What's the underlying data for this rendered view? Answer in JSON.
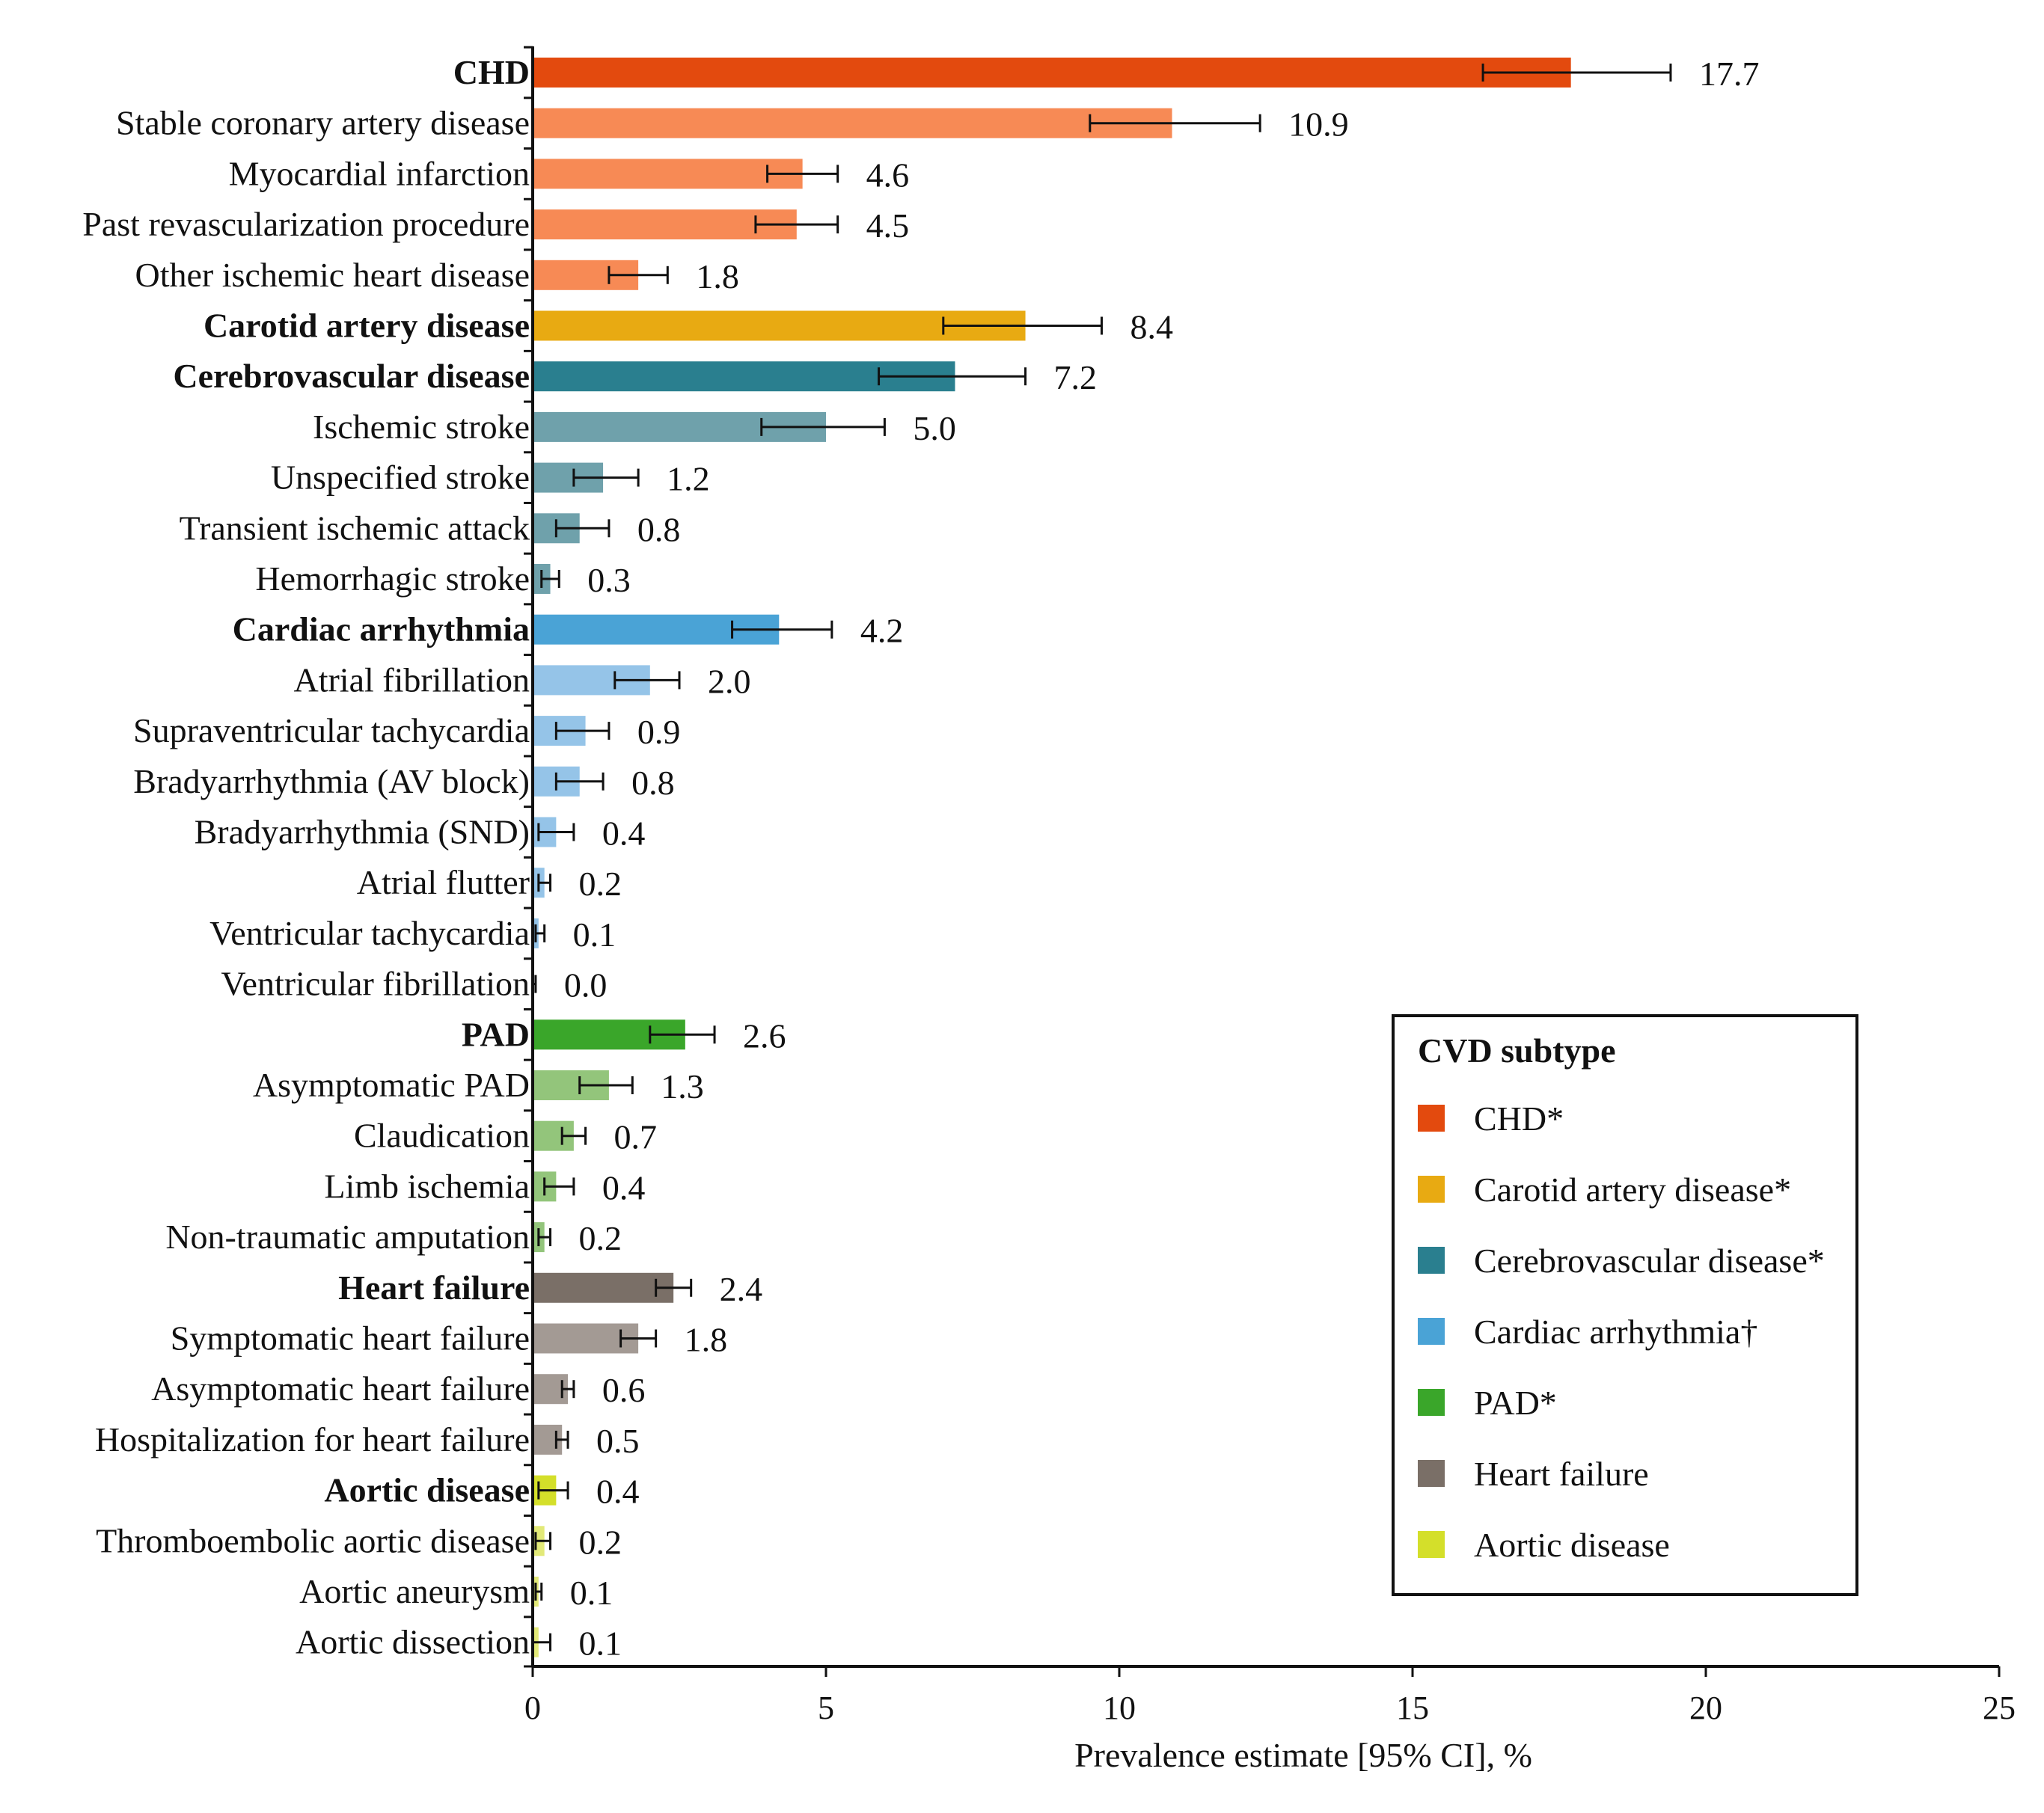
{
  "chart_data": {
    "type": "bar",
    "orientation": "horizontal",
    "xlabel": "Prevalence estimate [95% CI], %",
    "xlim": [
      0,
      25
    ],
    "xticks": [
      "0",
      "5",
      "10",
      "15",
      "20",
      "25"
    ],
    "grid": false,
    "legend_position": "bottom-right",
    "legend": {
      "title": "CVD subtype",
      "entries": [
        {
          "label": "CHD*",
          "color": "#e34a0e"
        },
        {
          "label": "Carotid artery disease*",
          "color": "#e8aa12"
        },
        {
          "label": "Cerebrovascular disease*",
          "color": "#2a7f8f"
        },
        {
          "label": "Cardiac arrhythmia†",
          "color": "#4aa3d6"
        },
        {
          "label": "PAD*",
          "color": "#3aa62a"
        },
        {
          "label": "Heart failure",
          "color": "#7a6f67"
        },
        {
          "label": "Aortic disease",
          "color": "#d4df2a"
        }
      ]
    },
    "categories": [
      {
        "label": "CHD",
        "value": 17.7,
        "display": "17.7",
        "ci": [
          16.2,
          19.4
        ],
        "bold": true,
        "color": "#e34a0e"
      },
      {
        "label": "Stable coronary artery disease",
        "value": 10.9,
        "display": "10.9",
        "ci": [
          9.5,
          12.4
        ],
        "bold": false,
        "color": "#f78a55"
      },
      {
        "label": "Myocardial infarction",
        "value": 4.6,
        "display": "4.6",
        "ci": [
          4.0,
          5.2
        ],
        "bold": false,
        "color": "#f78a55"
      },
      {
        "label": "Past revascularization procedure",
        "value": 4.5,
        "display": "4.5",
        "ci": [
          3.8,
          5.2
        ],
        "bold": false,
        "color": "#f78a55"
      },
      {
        "label": "Other ischemic heart disease",
        "value": 1.8,
        "display": "1.8",
        "ci": [
          1.3,
          2.3
        ],
        "bold": false,
        "color": "#f78a55"
      },
      {
        "label": "Carotid artery disease",
        "value": 8.4,
        "display": "8.4",
        "ci": [
          7.0,
          9.7
        ],
        "bold": true,
        "color": "#e8aa12"
      },
      {
        "label": "Cerebrovascular disease",
        "value": 7.2,
        "display": "7.2",
        "ci": [
          5.9,
          8.4
        ],
        "bold": true,
        "color": "#2a7f8f"
      },
      {
        "label": "Ischemic stroke",
        "value": 5.0,
        "display": "5.0",
        "ci": [
          3.9,
          6.0
        ],
        "bold": false,
        "color": "#6fa1ab"
      },
      {
        "label": "Unspecified stroke",
        "value": 1.2,
        "display": "1.2",
        "ci": [
          0.7,
          1.8
        ],
        "bold": false,
        "color": "#6fa1ab"
      },
      {
        "label": "Transient ischemic attack",
        "value": 0.8,
        "display": "0.8",
        "ci": [
          0.4,
          1.3
        ],
        "bold": false,
        "color": "#6fa1ab"
      },
      {
        "label": "Hemorrhagic stroke",
        "value": 0.3,
        "display": "0.3",
        "ci": [
          0.15,
          0.45
        ],
        "bold": false,
        "color": "#6fa1ab"
      },
      {
        "label": "Cardiac arrhythmia",
        "value": 4.2,
        "display": "4.2",
        "ci": [
          3.4,
          5.1
        ],
        "bold": true,
        "color": "#4aa3d6"
      },
      {
        "label": "Atrial fibrillation",
        "value": 2.0,
        "display": "2.0",
        "ci": [
          1.4,
          2.5
        ],
        "bold": false,
        "color": "#95c4e8"
      },
      {
        "label": "Supraventricular tachycardia",
        "value": 0.9,
        "display": "0.9",
        "ci": [
          0.4,
          1.3
        ],
        "bold": false,
        "color": "#95c4e8"
      },
      {
        "label": "Bradyarrhythmia (AV block)",
        "value": 0.8,
        "display": "0.8",
        "ci": [
          0.4,
          1.2
        ],
        "bold": false,
        "color": "#95c4e8"
      },
      {
        "label": "Bradyarrhythmia (SND)",
        "value": 0.4,
        "display": "0.4",
        "ci": [
          0.1,
          0.7
        ],
        "bold": false,
        "color": "#95c4e8"
      },
      {
        "label": "Atrial flutter",
        "value": 0.2,
        "display": "0.2",
        "ci": [
          0.1,
          0.3
        ],
        "bold": false,
        "color": "#95c4e8"
      },
      {
        "label": "Ventricular tachycardia",
        "value": 0.1,
        "display": "0.1",
        "ci": [
          0.05,
          0.2
        ],
        "bold": false,
        "color": "#95c4e8"
      },
      {
        "label": "Ventricular fibrillation",
        "value": 0.0,
        "display": "0.0",
        "ci": [
          0.0,
          0.05
        ],
        "bold": false,
        "color": "#95c4e8"
      },
      {
        "label": "PAD",
        "value": 2.6,
        "display": "2.6",
        "ci": [
          2.0,
          3.1
        ],
        "bold": true,
        "color": "#3aa62a"
      },
      {
        "label": "Asymptomatic PAD",
        "value": 1.3,
        "display": "1.3",
        "ci": [
          0.8,
          1.7
        ],
        "bold": false,
        "color": "#93c57b"
      },
      {
        "label": "Claudication",
        "value": 0.7,
        "display": "0.7",
        "ci": [
          0.5,
          0.9
        ],
        "bold": false,
        "color": "#93c57b"
      },
      {
        "label": "Limb ischemia",
        "value": 0.4,
        "display": "0.4",
        "ci": [
          0.2,
          0.7
        ],
        "bold": false,
        "color": "#93c57b"
      },
      {
        "label": "Non-traumatic amputation",
        "value": 0.2,
        "display": "0.2",
        "ci": [
          0.1,
          0.3
        ],
        "bold": false,
        "color": "#93c57b"
      },
      {
        "label": "Heart failure",
        "value": 2.4,
        "display": "2.4",
        "ci": [
          2.1,
          2.7
        ],
        "bold": true,
        "color": "#7a6f67"
      },
      {
        "label": "Symptomatic heart failure",
        "value": 1.8,
        "display": "1.8",
        "ci": [
          1.5,
          2.1
        ],
        "bold": false,
        "color": "#a39a94"
      },
      {
        "label": "Asymptomatic heart failure",
        "value": 0.6,
        "display": "0.6",
        "ci": [
          0.5,
          0.7
        ],
        "bold": false,
        "color": "#a39a94"
      },
      {
        "label": "Hospitalization for heart failure",
        "value": 0.5,
        "display": "0.5",
        "ci": [
          0.4,
          0.6
        ],
        "bold": false,
        "color": "#a39a94"
      },
      {
        "label": "Aortic disease",
        "value": 0.4,
        "display": "0.4",
        "ci": [
          0.1,
          0.6
        ],
        "bold": true,
        "color": "#d4df2a"
      },
      {
        "label": "Thromboembolic aortic disease",
        "value": 0.2,
        "display": "0.2",
        "ci": [
          0.05,
          0.3
        ],
        "bold": false,
        "color": "#e2e978"
      },
      {
        "label": "Aortic aneurysm",
        "value": 0.1,
        "display": "0.1",
        "ci": [
          0.05,
          0.15
        ],
        "bold": false,
        "color": "#e2e978"
      },
      {
        "label": "Aortic dissection",
        "value": 0.1,
        "display": "0.1",
        "ci": [
          0.0,
          0.3
        ],
        "bold": false,
        "color": "#e2e978"
      }
    ]
  }
}
